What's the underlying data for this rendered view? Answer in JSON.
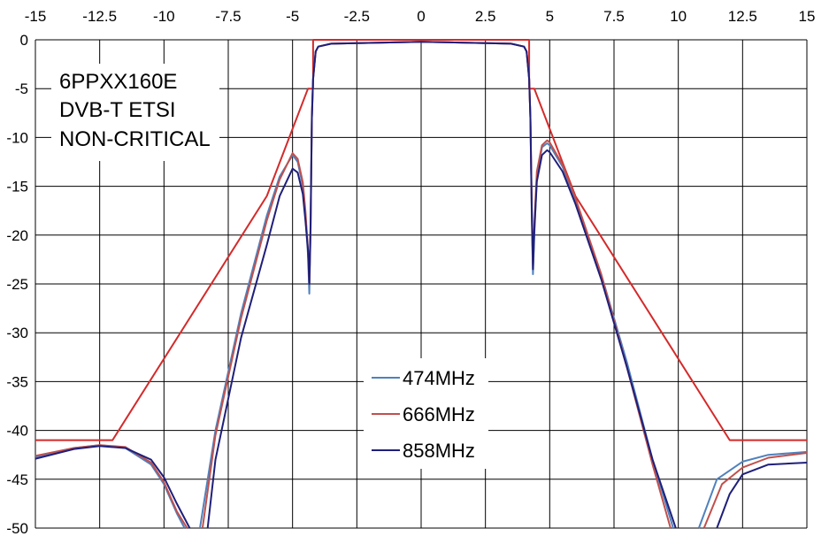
{
  "chart_data": {
    "type": "line",
    "title": "",
    "xlabel": "",
    "ylabel": "",
    "xlim": [
      -15,
      15
    ],
    "ylim": [
      -50,
      0
    ],
    "x_ticks": [
      "-15",
      "-12.5",
      "-10",
      "-7.5",
      "-5",
      "-2.5",
      "0",
      "2.5",
      "5",
      "7.5",
      "10",
      "12.5",
      "15"
    ],
    "y_ticks": [
      "0",
      "-5",
      "-10",
      "-15",
      "-20",
      "-25",
      "-30",
      "-35",
      "-40",
      "-45",
      "-50"
    ],
    "x_axis_position": "top",
    "grid": true,
    "annotation_lines": [
      "6PPXX160E",
      "DVB-T ETSI",
      "NON-CRITICAL"
    ],
    "legend_position": "bottom-center",
    "mask": {
      "color": "#d42a2a",
      "x": [
        -15,
        -12,
        -6,
        -4.4,
        -4.2,
        -4.2,
        4.2,
        4.2,
        4.4,
        6,
        12,
        15
      ],
      "y": [
        -41,
        -41,
        -16,
        -5,
        -5,
        0,
        0,
        -5,
        -5,
        -16,
        -41,
        -41
      ]
    },
    "series": [
      {
        "name": "474MHz",
        "color": "#4f81bd",
        "segments": [
          {
            "x": [
              -15,
              -13.5,
              -12.5,
              -11.5,
              -10.5,
              -10,
              -9.5,
              -9.2
            ],
            "y": [
              -42.7,
              -41.8,
              -41.5,
              -41.8,
              -43.5,
              -45.5,
              -48.5,
              -50
            ]
          },
          {
            "x": [
              -8.6,
              -8,
              -7,
              -6,
              -5.5,
              -5,
              -4.8,
              -4.6,
              -4.5,
              -4.4,
              -4.35,
              -4.3,
              -4.25,
              -4.2,
              -4.1,
              -4,
              -3.5,
              0,
              3.5,
              4,
              4.1,
              4.2,
              4.25,
              4.3,
              4.35,
              4.4,
              4.5,
              4.7,
              4.9,
              5,
              5.5,
              6,
              7,
              8,
              9,
              9.8
            ],
            "y": [
              -50,
              -40,
              -28,
              -18,
              -14,
              -11.8,
              -12.5,
              -15,
              -18,
              -22,
              -26,
              -20,
              -8,
              -4,
              -1.2,
              -0.7,
              -0.4,
              -0.2,
              -0.4,
              -0.7,
              -1.2,
              -4,
              -8,
              -18,
              -24,
              -20,
              -14,
              -11,
              -10.6,
              -10.8,
              -13,
              -16.5,
              -24,
              -33,
              -43,
              -50
            ]
          },
          {
            "x": [
              10.8,
              11.5,
              12.5,
              13.5,
              15
            ],
            "y": [
              -50,
              -45,
              -43.2,
              -42.5,
              -42.2
            ]
          }
        ]
      },
      {
        "name": "666MHz",
        "color": "#c0504d",
        "segments": [
          {
            "x": [
              -15,
              -13.5,
              -12.5,
              -11.5,
              -10.5,
              -10,
              -9.5,
              -9.1
            ],
            "y": [
              -42.6,
              -41.8,
              -41.5,
              -41.7,
              -43.3,
              -45.3,
              -48.3,
              -50
            ]
          },
          {
            "x": [
              -8.5,
              -8,
              -7,
              -6,
              -5.5,
              -5,
              -4.8,
              -4.6,
              -4.5,
              -4.4,
              -4.35,
              -4.3,
              -4.25,
              -4.2,
              -4.1,
              -4,
              -3.5,
              0,
              3.5,
              4,
              4.1,
              4.2,
              4.25,
              4.3,
              4.35,
              4.4,
              4.5,
              4.7,
              4.9,
              5,
              5.5,
              6,
              7,
              8,
              9,
              9.7
            ],
            "y": [
              -50,
              -40.5,
              -28.5,
              -18.5,
              -14.3,
              -11.6,
              -12.2,
              -14.6,
              -17.5,
              -21.5,
              -25,
              -19.5,
              -8,
              -4,
              -1.2,
              -0.7,
              -0.4,
              -0.2,
              -0.4,
              -0.7,
              -1.2,
              -4,
              -8,
              -17,
              -23,
              -19,
              -13.5,
              -10.8,
              -10.3,
              -10.5,
              -12.8,
              -16.2,
              -24,
              -33.5,
              -43.5,
              -50
            ]
          },
          {
            "x": [
              11,
              11.7,
              12.5,
              13.5,
              15
            ],
            "y": [
              -50,
              -45.5,
              -43.8,
              -42.8,
              -42.3
            ]
          }
        ]
      },
      {
        "name": "858MHz",
        "color": "#1f1f7a",
        "segments": [
          {
            "x": [
              -15,
              -13.5,
              -12.5,
              -11.5,
              -10.5,
              -10,
              -9.5,
              -9
            ],
            "y": [
              -42.9,
              -41.9,
              -41.6,
              -41.8,
              -43,
              -44.8,
              -47.5,
              -50
            ]
          },
          {
            "x": [
              -8.3,
              -8,
              -7,
              -6,
              -5.5,
              -5,
              -4.8,
              -4.6,
              -4.5,
              -4.4,
              -4.35,
              -4.3,
              -4.25,
              -4.2,
              -4.1,
              -4,
              -3.5,
              0,
              3.5,
              4,
              4.1,
              4.2,
              4.25,
              4.3,
              4.35,
              4.4,
              4.5,
              4.7,
              4.9,
              5,
              5.5,
              6,
              7,
              8,
              9,
              9.9
            ],
            "y": [
              -50,
              -43,
              -30.5,
              -21,
              -16,
              -13.2,
              -13.6,
              -15.8,
              -18.5,
              -21.5,
              -25,
              -19,
              -8,
              -4,
              -1.2,
              -0.7,
              -0.4,
              -0.2,
              -0.4,
              -0.7,
              -1.2,
              -4,
              -8,
              -17,
              -23.5,
              -19.5,
              -14.5,
              -11.8,
              -11.3,
              -11.5,
              -13.5,
              -16.8,
              -24.5,
              -33.5,
              -43,
              -50
            ]
          },
          {
            "x": [
              11.5,
              12,
              12.5,
              13.5,
              15
            ],
            "y": [
              -50,
              -46.5,
              -44.5,
              -43.5,
              -43.3
            ]
          }
        ]
      }
    ]
  }
}
